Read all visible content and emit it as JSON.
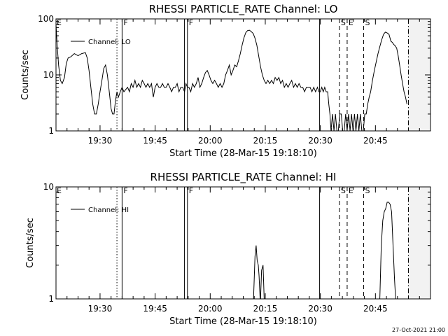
{
  "footer_stamp": "27-Oct-2021 21:00",
  "x_axis": {
    "label": "Start Time (28-Mar-15 19:18:10)",
    "unit": "minutes after 19:18:10",
    "range": [
      0,
      102
    ],
    "ticks": [
      {
        "value": 12,
        "label": "19:30"
      },
      {
        "value": 27,
        "label": "19:45"
      },
      {
        "value": 42,
        "label": "20:00"
      },
      {
        "value": 57,
        "label": "20:15"
      },
      {
        "value": 72,
        "label": "20:30"
      },
      {
        "value": 87,
        "label": "20:45"
      }
    ]
  },
  "markers": [
    {
      "x": 16.6,
      "style": "dotted",
      "label": ""
    },
    {
      "x": 18.0,
      "style": "solid",
      "label": "F"
    },
    {
      "x": 35.0,
      "style": "solid",
      "label": ""
    },
    {
      "x": 35.8,
      "style": "solid",
      "label": "F"
    },
    {
      "x": 71.8,
      "style": "solid",
      "label": ""
    },
    {
      "x": 77.2,
      "style": "dashed",
      "label": "S"
    },
    {
      "x": 79.3,
      "style": "dashed",
      "label": "E"
    },
    {
      "x": 83.8,
      "style": "dashed",
      "label": "S"
    },
    {
      "x": 96.0,
      "style": "dashdot",
      "label": ""
    }
  ],
  "shade_from": 96.0,
  "chart_data": [
    {
      "type": "line",
      "title": "RHESSI PARTICLE_RATE Channel: LO",
      "xlabel": "Start Time (28-Mar-15 19:18:10)",
      "ylabel": "Counts/sec",
      "yscale": "log",
      "ylim": [
        1,
        100
      ],
      "yticks": [
        {
          "value": 1,
          "label": "1"
        },
        {
          "value": 10,
          "label": "10"
        },
        {
          "value": 100,
          "label": "100"
        }
      ],
      "edge_label": "E",
      "legend": {
        "label": "Channel: LO",
        "placement": "top-left"
      },
      "series": [
        {
          "name": "Channel: LO",
          "points": [
            [
              0,
              80
            ],
            [
              0.3,
              35
            ],
            [
              0.7,
              15
            ],
            [
              1.2,
              8
            ],
            [
              1.7,
              7
            ],
            [
              2.3,
              9
            ],
            [
              2.8,
              16
            ],
            [
              3.3,
              20
            ],
            [
              4,
              21
            ],
            [
              5,
              24
            ],
            [
              6,
              22
            ],
            [
              7,
              24
            ],
            [
              8,
              25
            ],
            [
              8.5,
              20
            ],
            [
              9,
              12
            ],
            [
              9.5,
              6
            ],
            [
              10,
              3
            ],
            [
              10.5,
              2
            ],
            [
              11,
              2
            ],
            [
              11.5,
              3
            ],
            [
              12,
              5
            ],
            [
              12.5,
              8
            ],
            [
              13,
              13
            ],
            [
              13.5,
              15
            ],
            [
              14,
              10
            ],
            [
              14.5,
              5
            ],
            [
              15,
              2.5
            ],
            [
              15.4,
              2
            ],
            [
              15.8,
              2
            ],
            [
              16.2,
              3.5
            ],
            [
              16.6,
              5
            ],
            [
              17,
              4
            ],
            [
              17.5,
              5
            ],
            [
              18,
              6
            ],
            [
              18.5,
              5
            ],
            [
              19,
              5.5
            ],
            [
              19.5,
              6
            ],
            [
              20,
              5
            ],
            [
              20.5,
              7
            ],
            [
              21,
              6
            ],
            [
              21.5,
              8
            ],
            [
              22,
              6
            ],
            [
              22.5,
              7
            ],
            [
              23,
              6
            ],
            [
              23.5,
              8
            ],
            [
              24,
              7
            ],
            [
              24.5,
              6
            ],
            [
              25,
              7
            ],
            [
              25.5,
              6
            ],
            [
              26,
              7
            ],
            [
              26.5,
              4
            ],
            [
              27,
              6
            ],
            [
              27.5,
              7
            ],
            [
              28,
              6
            ],
            [
              28.5,
              6
            ],
            [
              29,
              7
            ],
            [
              29.5,
              6
            ],
            [
              30,
              6
            ],
            [
              30.5,
              7
            ],
            [
              31,
              6
            ],
            [
              31.5,
              5
            ],
            [
              32,
              6
            ],
            [
              32.5,
              6
            ],
            [
              33,
              7
            ],
            [
              33.5,
              5
            ],
            [
              34,
              6
            ],
            [
              34.5,
              6
            ],
            [
              35,
              5
            ],
            [
              35.4,
              7
            ],
            [
              35.8,
              6
            ],
            [
              36.2,
              6
            ],
            [
              36.7,
              5
            ],
            [
              37.2,
              7
            ],
            [
              37.7,
              6
            ],
            [
              38.2,
              7
            ],
            [
              38.7,
              9
            ],
            [
              39.2,
              6
            ],
            [
              39.7,
              7
            ],
            [
              40.2,
              9
            ],
            [
              40.7,
              11
            ],
            [
              41.2,
              12
            ],
            [
              41.7,
              10
            ],
            [
              42.2,
              8
            ],
            [
              42.7,
              7
            ],
            [
              43.2,
              8
            ],
            [
              43.7,
              7
            ],
            [
              44.2,
              6
            ],
            [
              44.7,
              7
            ],
            [
              45.2,
              6
            ],
            [
              45.7,
              7
            ],
            [
              46.2,
              10
            ],
            [
              46.7,
              12
            ],
            [
              47.2,
              15
            ],
            [
              47.7,
              10
            ],
            [
              48.2,
              12
            ],
            [
              48.7,
              15
            ],
            [
              49.2,
              14
            ],
            [
              49.7,
              18
            ],
            [
              50.2,
              24
            ],
            [
              50.7,
              34
            ],
            [
              51.2,
              46
            ],
            [
              51.7,
              57
            ],
            [
              52.2,
              62
            ],
            [
              52.7,
              63
            ],
            [
              53.2,
              59
            ],
            [
              53.7,
              55
            ],
            [
              54.2,
              45
            ],
            [
              54.7,
              34
            ],
            [
              55.2,
              22
            ],
            [
              55.7,
              14
            ],
            [
              56.2,
              10
            ],
            [
              56.7,
              8
            ],
            [
              57.2,
              7
            ],
            [
              57.7,
              8
            ],
            [
              58.2,
              7
            ],
            [
              58.7,
              8
            ],
            [
              59.2,
              7
            ],
            [
              59.7,
              9
            ],
            [
              60.2,
              8
            ],
            [
              60.7,
              9
            ],
            [
              61.2,
              7
            ],
            [
              61.7,
              8
            ],
            [
              62.2,
              6
            ],
            [
              62.7,
              7
            ],
            [
              63.2,
              6
            ],
            [
              63.7,
              7
            ],
            [
              64.2,
              8
            ],
            [
              64.7,
              6
            ],
            [
              65.2,
              7
            ],
            [
              65.7,
              6
            ],
            [
              66.2,
              7
            ],
            [
              66.7,
              6
            ],
            [
              67.2,
              6
            ],
            [
              67.7,
              5
            ],
            [
              68.2,
              6
            ],
            [
              68.7,
              6
            ],
            [
              69.2,
              6
            ],
            [
              69.7,
              5
            ],
            [
              70.2,
              6
            ],
            [
              70.7,
              5
            ],
            [
              71.2,
              6
            ],
            [
              71.6,
              5
            ],
            [
              72,
              5
            ],
            [
              72.4,
              6
            ],
            [
              72.8,
              5
            ],
            [
              73.2,
              6
            ],
            [
              73.6,
              5
            ],
            [
              74,
              5
            ],
            [
              74.3,
              3
            ],
            [
              74.6,
              2
            ],
            [
              74.9,
              1
            ],
            [
              75.3,
              2
            ],
            [
              75.7,
              1
            ],
            [
              76.1,
              2
            ],
            [
              76.5,
              1
            ],
            [
              76.9,
              1
            ],
            [
              77.3,
              2
            ],
            [
              77.7,
              2
            ],
            [
              78.1,
              1
            ],
            [
              78.5,
              1
            ],
            [
              78.9,
              2
            ],
            [
              79.3,
              1
            ],
            [
              79.7,
              2
            ],
            [
              80.1,
              1
            ],
            [
              80.5,
              2
            ],
            [
              80.9,
              1
            ],
            [
              81.3,
              2
            ],
            [
              81.7,
              1
            ],
            [
              82.1,
              2
            ],
            [
              82.5,
              1
            ],
            [
              82.9,
              2
            ],
            [
              83.3,
              1
            ],
            [
              83.7,
              1
            ],
            [
              84.1,
              2
            ],
            [
              84.5,
              2
            ],
            [
              84.9,
              3
            ],
            [
              85.3,
              4
            ],
            [
              85.7,
              5
            ],
            [
              86.2,
              8
            ],
            [
              86.7,
              12
            ],
            [
              87.2,
              17
            ],
            [
              87.7,
              24
            ],
            [
              88.2,
              32
            ],
            [
              88.7,
              42
            ],
            [
              89.2,
              53
            ],
            [
              89.7,
              58
            ],
            [
              90.2,
              56
            ],
            [
              90.7,
              53
            ],
            [
              91.2,
              40
            ],
            [
              91.6,
              38
            ],
            [
              92,
              35
            ],
            [
              92.4,
              33
            ],
            [
              92.8,
              30
            ],
            [
              93.2,
              22
            ],
            [
              93.6,
              15
            ],
            [
              94,
              10
            ],
            [
              94.4,
              7
            ],
            [
              94.8,
              5
            ],
            [
              95.2,
              4
            ],
            [
              95.6,
              3
            ]
          ]
        }
      ]
    },
    {
      "type": "line",
      "title": "RHESSI PARTICLE_RATE Channel: HI",
      "xlabel": "Start Time (28-Mar-15 19:18:10)",
      "ylabel": "Counts/sec",
      "yscale": "log",
      "ylim": [
        1,
        10
      ],
      "yticks": [
        {
          "value": 1,
          "label": "1"
        },
        {
          "value": 10,
          "label": "10"
        }
      ],
      "edge_label": "E",
      "legend": {
        "label": "Channel: HI",
        "placement": "top-left"
      },
      "series": [
        {
          "name": "Channel: HI",
          "segments": [
            [
              [
                53.8,
                1
              ],
              [
                54.2,
                2.4
              ],
              [
                54.5,
                3
              ],
              [
                54.8,
                2.2
              ],
              [
                55.1,
                2
              ],
              [
                55.3,
                1.6
              ],
              [
                55.6,
                1
              ]
            ],
            [
              [
                55.7,
                1
              ],
              [
                56,
                1.8
              ],
              [
                56.4,
                2
              ],
              [
                56.7,
                1
              ]
            ],
            [
              [
                88.2,
                1
              ],
              [
                88.6,
                3
              ],
              [
                89,
                5
              ],
              [
                89.4,
                6
              ],
              [
                89.8,
                6.4
              ],
              [
                90.2,
                7.3
              ],
              [
                90.6,
                7.3
              ],
              [
                91,
                7
              ],
              [
                91.4,
                6
              ],
              [
                91.8,
                3
              ],
              [
                92.2,
                1.5
              ],
              [
                92.5,
                1
              ]
            ]
          ]
        }
      ]
    }
  ]
}
